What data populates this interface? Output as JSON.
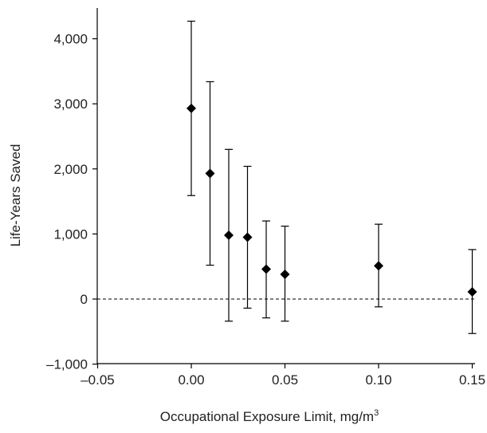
{
  "chart_data": {
    "type": "scatter",
    "title": "",
    "xlabel": "Occupational Exposure Limit, mg/m",
    "xlabel_superscript": "3",
    "ylabel": "Life-Years Saved",
    "xlim": [
      -0.05,
      0.15
    ],
    "ylim": [
      -1000,
      4000
    ],
    "x_ticks": [
      -0.05,
      0.0,
      0.05,
      0.1,
      0.15
    ],
    "x_tick_labels": [
      "–0.05",
      "0.00",
      "0.05",
      "0.10",
      "0.15"
    ],
    "y_ticks": [
      -1000,
      0,
      1000,
      2000,
      3000,
      4000
    ],
    "y_tick_labels": [
      "–1,000",
      "0",
      "1,000",
      "2,000",
      "3,000",
      "4,000"
    ],
    "reference_line": {
      "y": 0,
      "style": "dashed"
    },
    "grid": false,
    "legend": "none",
    "marker": "diamond",
    "marker_color": "#000000",
    "points": [
      {
        "x": 0.0,
        "y": 2930,
        "low": 1590,
        "high": 4270
      },
      {
        "x": 0.01,
        "y": 1930,
        "low": 520,
        "high": 3340
      },
      {
        "x": 0.02,
        "y": 980,
        "low": -340,
        "high": 2300
      },
      {
        "x": 0.03,
        "y": 950,
        "low": -140,
        "high": 2040
      },
      {
        "x": 0.04,
        "y": 460,
        "low": -290,
        "high": 1200
      },
      {
        "x": 0.05,
        "y": 380,
        "low": -340,
        "high": 1120
      },
      {
        "x": 0.1,
        "y": 510,
        "low": -120,
        "high": 1150
      },
      {
        "x": 0.15,
        "y": 110,
        "low": -530,
        "high": 760
      }
    ]
  }
}
